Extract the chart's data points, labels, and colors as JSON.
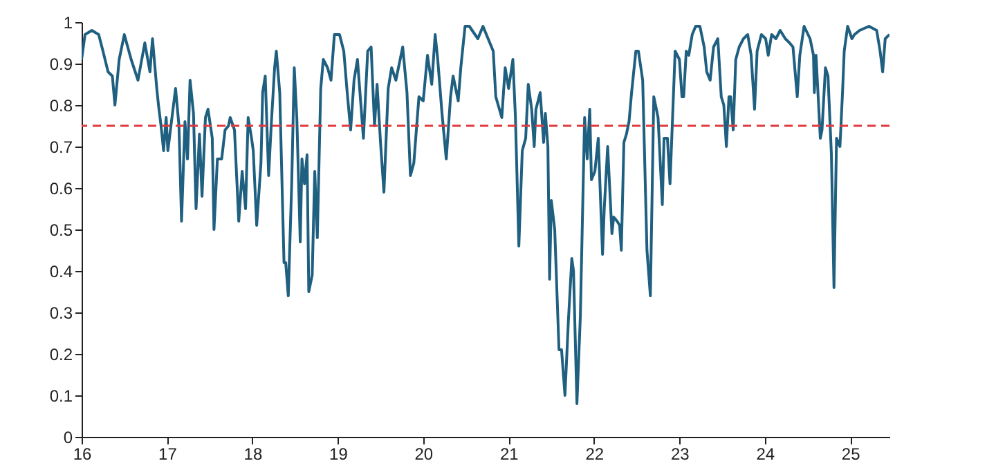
{
  "chart_data": {
    "type": "line",
    "x": [
      16.0,
      16.04,
      16.12,
      16.2,
      16.25,
      16.31,
      16.36,
      16.39,
      16.44,
      16.5,
      16.58,
      16.66,
      16.74,
      16.8,
      16.83,
      16.88,
      16.9,
      16.93,
      16.96,
      16.99,
      17.01,
      17.07,
      17.1,
      17.14,
      17.17,
      17.21,
      17.24,
      17.27,
      17.31,
      17.34,
      17.38,
      17.41,
      17.45,
      17.48,
      17.53,
      17.55,
      17.59,
      17.64,
      17.68,
      17.72,
      17.74,
      17.79,
      17.84,
      17.88,
      17.92,
      17.95,
      17.99,
      18.01,
      18.05,
      18.1,
      18.12,
      18.15,
      18.19,
      18.22,
      18.26,
      18.28,
      18.32,
      18.37,
      18.39,
      18.42,
      18.46,
      18.49,
      18.52,
      18.56,
      18.58,
      18.61,
      18.64,
      18.66,
      18.7,
      18.73,
      18.76,
      18.8,
      18.83,
      18.88,
      18.92,
      18.96,
      19.02,
      19.07,
      19.11,
      19.15,
      19.19,
      19.23,
      19.3,
      19.35,
      19.39,
      19.43,
      19.46,
      19.5,
      19.54,
      19.59,
      19.63,
      19.68,
      19.76,
      19.81,
      19.85,
      19.89,
      19.95,
      20.0,
      20.05,
      20.1,
      20.14,
      20.17,
      20.22,
      20.27,
      20.32,
      20.35,
      20.41,
      20.44,
      20.49,
      20.54,
      20.64,
      20.7,
      20.78,
      20.82,
      20.85,
      20.92,
      20.96,
      21.0,
      21.05,
      21.08,
      21.12,
      21.16,
      21.2,
      21.23,
      21.27,
      21.3,
      21.32,
      21.37,
      21.41,
      21.43,
      21.46,
      21.48,
      21.5,
      21.54,
      21.59,
      21.62,
      21.66,
      21.7,
      21.74,
      21.76,
      21.8,
      21.84,
      21.89,
      21.92,
      21.95,
      21.97,
      22.01,
      22.05,
      22.1,
      22.12,
      22.16,
      22.21,
      22.23,
      22.27,
      22.3,
      22.32,
      22.35,
      22.38,
      22.41,
      22.44,
      22.49,
      22.52,
      22.57,
      22.62,
      22.66,
      22.7,
      22.75,
      22.8,
      22.82,
      22.86,
      22.89,
      22.95,
      23.0,
      23.03,
      23.05,
      23.08,
      23.11,
      23.15,
      23.19,
      23.24,
      23.29,
      23.32,
      23.36,
      23.4,
      23.45,
      23.49,
      23.52,
      23.55,
      23.58,
      23.6,
      23.63,
      23.66,
      23.7,
      23.75,
      23.8,
      23.84,
      23.88,
      23.91,
      23.96,
      24.01,
      24.04,
      24.08,
      24.13,
      24.18,
      24.24,
      24.29,
      24.33,
      24.38,
      24.41,
      24.46,
      24.53,
      24.57,
      24.58,
      24.6,
      24.65,
      24.67,
      24.71,
      24.74,
      24.78,
      24.81,
      24.84,
      24.88,
      24.91,
      24.93,
      24.97,
      25.02,
      25.05,
      25.11,
      25.22,
      25.31,
      25.35,
      25.38,
      25.41,
      25.46
    ],
    "series": [
      {
        "color": "#1f5f80",
        "values": [
          0.91,
          0.97,
          0.98,
          0.97,
          0.93,
          0.88,
          0.87,
          0.8,
          0.91,
          0.97,
          0.91,
          0.86,
          0.95,
          0.88,
          0.96,
          0.84,
          0.8,
          0.75,
          0.69,
          0.77,
          0.69,
          0.79,
          0.84,
          0.75,
          0.52,
          0.76,
          0.67,
          0.86,
          0.78,
          0.55,
          0.73,
          0.58,
          0.77,
          0.79,
          0.72,
          0.5,
          0.67,
          0.67,
          0.74,
          0.75,
          0.77,
          0.74,
          0.52,
          0.64,
          0.55,
          0.77,
          0.72,
          0.69,
          0.51,
          0.66,
          0.83,
          0.87,
          0.63,
          0.75,
          0.89,
          0.93,
          0.83,
          0.42,
          0.42,
          0.34,
          0.61,
          0.89,
          0.77,
          0.47,
          0.67,
          0.61,
          0.68,
          0.35,
          0.39,
          0.64,
          0.48,
          0.84,
          0.91,
          0.89,
          0.86,
          0.97,
          0.97,
          0.93,
          0.83,
          0.74,
          0.86,
          0.91,
          0.72,
          0.93,
          0.94,
          0.75,
          0.85,
          0.71,
          0.59,
          0.84,
          0.89,
          0.86,
          0.94,
          0.83,
          0.63,
          0.66,
          0.82,
          0.81,
          0.92,
          0.85,
          0.97,
          0.91,
          0.78,
          0.67,
          0.82,
          0.87,
          0.81,
          0.89,
          0.99,
          0.99,
          0.96,
          0.99,
          0.95,
          0.93,
          0.82,
          0.77,
          0.89,
          0.84,
          0.91,
          0.77,
          0.46,
          0.69,
          0.72,
          0.85,
          0.79,
          0.7,
          0.79,
          0.83,
          0.71,
          0.78,
          0.7,
          0.38,
          0.57,
          0.5,
          0.21,
          0.21,
          0.1,
          0.28,
          0.43,
          0.4,
          0.08,
          0.29,
          0.77,
          0.67,
          0.79,
          0.62,
          0.64,
          0.72,
          0.44,
          0.55,
          0.7,
          0.49,
          0.53,
          0.52,
          0.51,
          0.45,
          0.71,
          0.73,
          0.76,
          0.83,
          0.93,
          0.93,
          0.86,
          0.45,
          0.34,
          0.82,
          0.77,
          0.56,
          0.72,
          0.72,
          0.61,
          0.93,
          0.91,
          0.82,
          0.82,
          0.93,
          0.92,
          0.97,
          0.99,
          0.99,
          0.94,
          0.88,
          0.86,
          0.94,
          0.96,
          0.82,
          0.8,
          0.7,
          0.82,
          0.82,
          0.74,
          0.91,
          0.94,
          0.96,
          0.97,
          0.92,
          0.79,
          0.93,
          0.97,
          0.96,
          0.92,
          0.97,
          0.96,
          0.98,
          0.96,
          0.95,
          0.94,
          0.82,
          0.92,
          0.99,
          0.96,
          0.92,
          0.83,
          0.92,
          0.72,
          0.74,
          0.89,
          0.87,
          0.68,
          0.36,
          0.72,
          0.7,
          0.83,
          0.93,
          0.99,
          0.96,
          0.97,
          0.98,
          0.99,
          0.98,
          0.93,
          0.88,
          0.96,
          0.97
        ]
      }
    ],
    "xlim": [
      16,
      25.46
    ],
    "xticks": [
      16,
      17,
      18,
      19,
      20,
      21,
      22,
      23,
      24,
      25
    ],
    "ylim": [
      0,
      1
    ],
    "yticks": [
      0,
      0.1,
      0.2,
      0.3,
      0.4,
      0.5,
      0.6,
      0.7,
      0.8,
      0.9,
      1
    ],
    "ref_lines": [
      {
        "axis": "y",
        "value": 0.75,
        "color": "#e0393e",
        "line_style": "dashed"
      }
    ],
    "grid": false,
    "marker": "none",
    "line_style": "solid"
  }
}
